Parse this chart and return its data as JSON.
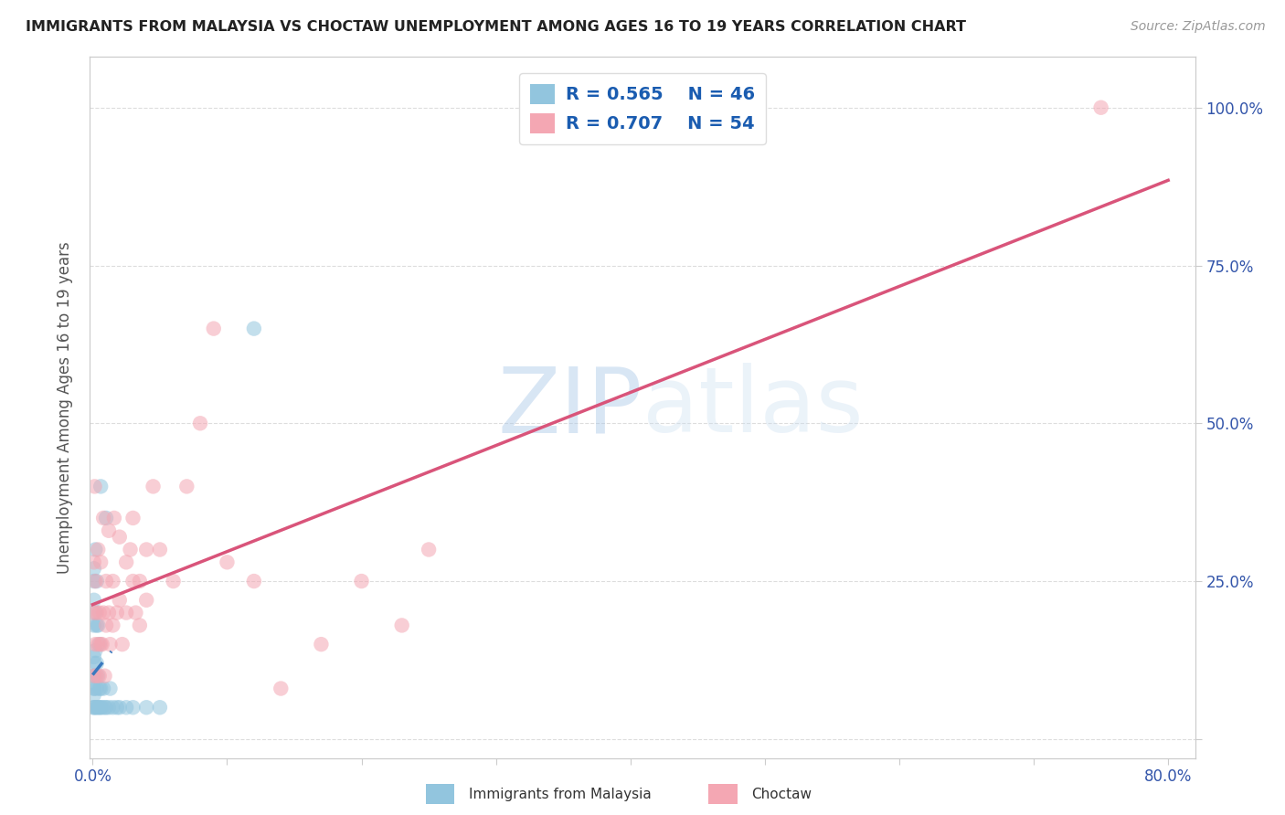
{
  "title": "IMMIGRANTS FROM MALAYSIA VS CHOCTAW UNEMPLOYMENT AMONG AGES 16 TO 19 YEARS CORRELATION CHART",
  "source": "Source: ZipAtlas.com",
  "ylabel": "Unemployment Among Ages 16 to 19 years",
  "legend_blue_r": "R = 0.565",
  "legend_blue_n": "N = 46",
  "legend_pink_r": "R = 0.707",
  "legend_pink_n": "N = 54",
  "blue_color": "#92c5de",
  "pink_color": "#f4a7b3",
  "blue_line_color": "#3a7abf",
  "pink_line_color": "#d9547a",
  "watermark_zip": "ZIP",
  "watermark_atlas": "atlas",
  "xmin": -0.002,
  "xmax": 0.82,
  "ymin": -0.03,
  "ymax": 1.08,
  "xticks": [
    0.0,
    0.1,
    0.2,
    0.3,
    0.4,
    0.5,
    0.6,
    0.7,
    0.8
  ],
  "xticklabels": [
    "0.0%",
    "",
    "",
    "",
    "",
    "",
    "",
    "",
    "80.0%"
  ],
  "yticks": [
    0.0,
    0.25,
    0.5,
    0.75,
    1.0
  ],
  "right_yticklabels": [
    "",
    "25.0%",
    "50.0%",
    "75.0%",
    "100.0%"
  ],
  "blue_x": [
    0.0005,
    0.0008,
    0.001,
    0.001,
    0.001,
    0.001,
    0.001,
    0.001,
    0.001,
    0.001,
    0.0012,
    0.0015,
    0.002,
    0.002,
    0.002,
    0.002,
    0.002,
    0.003,
    0.003,
    0.003,
    0.003,
    0.003,
    0.004,
    0.004,
    0.004,
    0.005,
    0.005,
    0.005,
    0.006,
    0.006,
    0.006,
    0.007,
    0.008,
    0.009,
    0.01,
    0.01,
    0.012,
    0.013,
    0.015,
    0.018,
    0.02,
    0.025,
    0.03,
    0.04,
    0.05,
    0.12
  ],
  "blue_y": [
    0.05,
    0.08,
    0.05,
    0.07,
    0.1,
    0.13,
    0.18,
    0.22,
    0.25,
    0.27,
    0.08,
    0.12,
    0.05,
    0.1,
    0.14,
    0.2,
    0.3,
    0.05,
    0.08,
    0.12,
    0.18,
    0.25,
    0.05,
    0.1,
    0.18,
    0.05,
    0.08,
    0.15,
    0.05,
    0.08,
    0.4,
    0.05,
    0.08,
    0.05,
    0.05,
    0.35,
    0.05,
    0.08,
    0.05,
    0.05,
    0.05,
    0.05,
    0.05,
    0.05,
    0.05,
    0.65
  ],
  "pink_x": [
    0.0005,
    0.001,
    0.001,
    0.0015,
    0.002,
    0.002,
    0.003,
    0.003,
    0.004,
    0.004,
    0.005,
    0.005,
    0.006,
    0.006,
    0.007,
    0.008,
    0.008,
    0.009,
    0.01,
    0.01,
    0.012,
    0.012,
    0.013,
    0.015,
    0.015,
    0.016,
    0.018,
    0.02,
    0.02,
    0.022,
    0.025,
    0.025,
    0.028,
    0.03,
    0.03,
    0.032,
    0.035,
    0.035,
    0.04,
    0.04,
    0.045,
    0.05,
    0.06,
    0.07,
    0.08,
    0.09,
    0.1,
    0.12,
    0.14,
    0.17,
    0.2,
    0.23,
    0.25,
    0.75
  ],
  "pink_y": [
    0.2,
    0.1,
    0.28,
    0.4,
    0.15,
    0.25,
    0.1,
    0.2,
    0.15,
    0.3,
    0.1,
    0.2,
    0.15,
    0.28,
    0.15,
    0.2,
    0.35,
    0.1,
    0.18,
    0.25,
    0.2,
    0.33,
    0.15,
    0.18,
    0.25,
    0.35,
    0.2,
    0.22,
    0.32,
    0.15,
    0.2,
    0.28,
    0.3,
    0.25,
    0.35,
    0.2,
    0.18,
    0.25,
    0.22,
    0.3,
    0.4,
    0.3,
    0.25,
    0.4,
    0.5,
    0.65,
    0.28,
    0.25,
    0.08,
    0.15,
    0.25,
    0.18,
    0.3,
    1.0
  ]
}
